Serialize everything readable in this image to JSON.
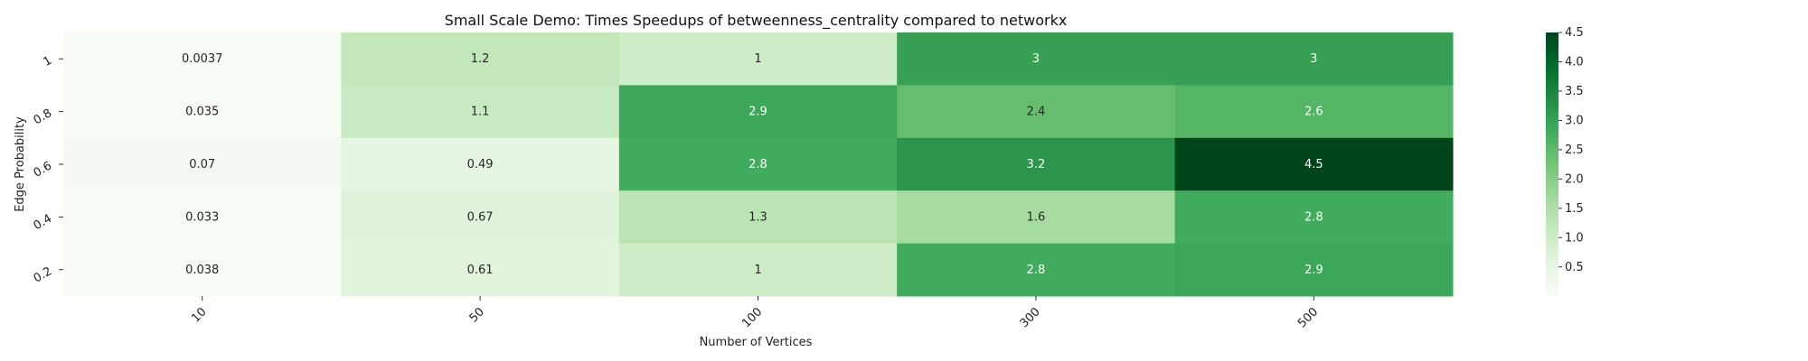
{
  "chart_data": {
    "type": "heatmap",
    "title": "Small Scale Demo: Times Speedups of betweenness_centrality compared to networkx",
    "xlabel": "Number of Vertices",
    "ylabel": "Edge Probability",
    "x_categories": [
      "10",
      "50",
      "100",
      "300",
      "500"
    ],
    "y_categories": [
      "1",
      "0.8",
      "0.6",
      "0.4",
      "0.2"
    ],
    "values": [
      [
        0.0037,
        1.2,
        1,
        3,
        3
      ],
      [
        0.035,
        1.1,
        2.9,
        2.4,
        2.6
      ],
      [
        0.07,
        0.49,
        2.8,
        3.2,
        4.5
      ],
      [
        0.033,
        0.67,
        1.3,
        1.6,
        2.8
      ],
      [
        0.038,
        0.61,
        1,
        2.8,
        2.9
      ]
    ],
    "value_labels": [
      [
        "0.0037",
        "1.2",
        "1",
        "3",
        "3"
      ],
      [
        "0.035",
        "1.1",
        "2.9",
        "2.4",
        "2.6"
      ],
      [
        "0.07",
        "0.49",
        "2.8",
        "3.2",
        "4.5"
      ],
      [
        "0.033",
        "0.67",
        "1.3",
        "1.6",
        "2.8"
      ],
      [
        "0.038",
        "0.61",
        "1",
        "2.8",
        "2.9"
      ]
    ],
    "colormap": "Greens",
    "color_range": [
      0.0037,
      4.5
    ],
    "colorbar_ticks": [
      "0.5",
      "1.0",
      "1.5",
      "2.0",
      "2.5",
      "3.0",
      "3.5",
      "4.0",
      "4.5"
    ],
    "grid": false
  }
}
